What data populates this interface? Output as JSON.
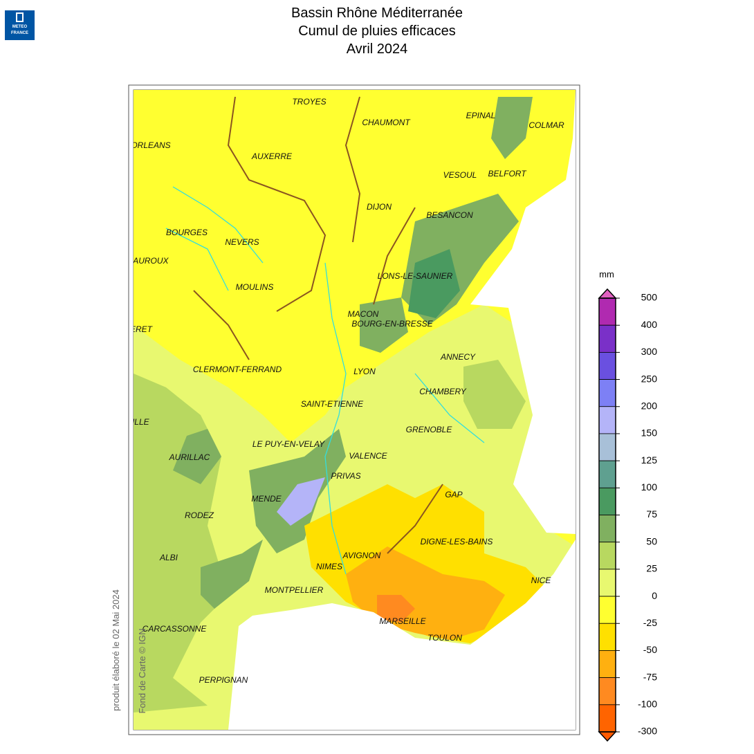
{
  "logo": {
    "line1": "METEO",
    "line2": "FRANCE"
  },
  "header": {
    "title": [
      "Bassin Rhône Méditerranée",
      "Cumul de pluies efficaces",
      "Avril 2024"
    ]
  },
  "map": {
    "cities": [
      "TROYES",
      "CHAUMONT",
      "EPINAL",
      "COLMAR",
      "ORLEANS",
      "AUXERRE",
      "VESOUL",
      "BELFORT",
      "DIJON",
      "BESANCON",
      "BOURGES",
      "NEVERS",
      "CHATEAUROUX",
      "LONS-LE-SAUNIER",
      "MOULINS",
      "MACON",
      "BOURG-EN-BRESSE",
      "GUERET",
      "ANNECY",
      "CLERMONT-FERRAND",
      "LYON",
      "SAINT-ETIENNE",
      "CHAMBERY",
      "TULLE",
      "GRENOBLE",
      "LE PUY-EN-VELAY",
      "AURILLAC",
      "VALENCE",
      "PRIVAS",
      "GAP",
      "MENDE",
      "RODEZ",
      "DIGNE-LES-BAINS",
      "ALBI",
      "AVIGNON",
      "NIMES",
      "NICE",
      "MONTPELLIER",
      "MARSEILLE",
      "CARCASSONNE",
      "TOULON",
      "PERPIGNAN"
    ],
    "credit": "Fond de Carte © IGN",
    "produced": "produit élaboré le 02 Mai 2024"
  },
  "colorbar": {
    "unit": "mm",
    "ticks": [
      500,
      400,
      300,
      250,
      200,
      150,
      125,
      100,
      75,
      50,
      25,
      0,
      -25,
      -50,
      -75,
      -100,
      -300
    ],
    "colors": [
      "#b02ab0",
      "#7a30c8",
      "#6a50e0",
      "#7d80f5",
      "#b4b4f8",
      "#a8c0d8",
      "#5fa090",
      "#4a9a60",
      "#80b060",
      "#b8d860",
      "#e8f870",
      "#ffff30",
      "#ffe000",
      "#ffb010",
      "#ff8a20",
      "#ff6400"
    ],
    "over_color": "#e060c0",
    "under_color": "#ff5a00"
  }
}
